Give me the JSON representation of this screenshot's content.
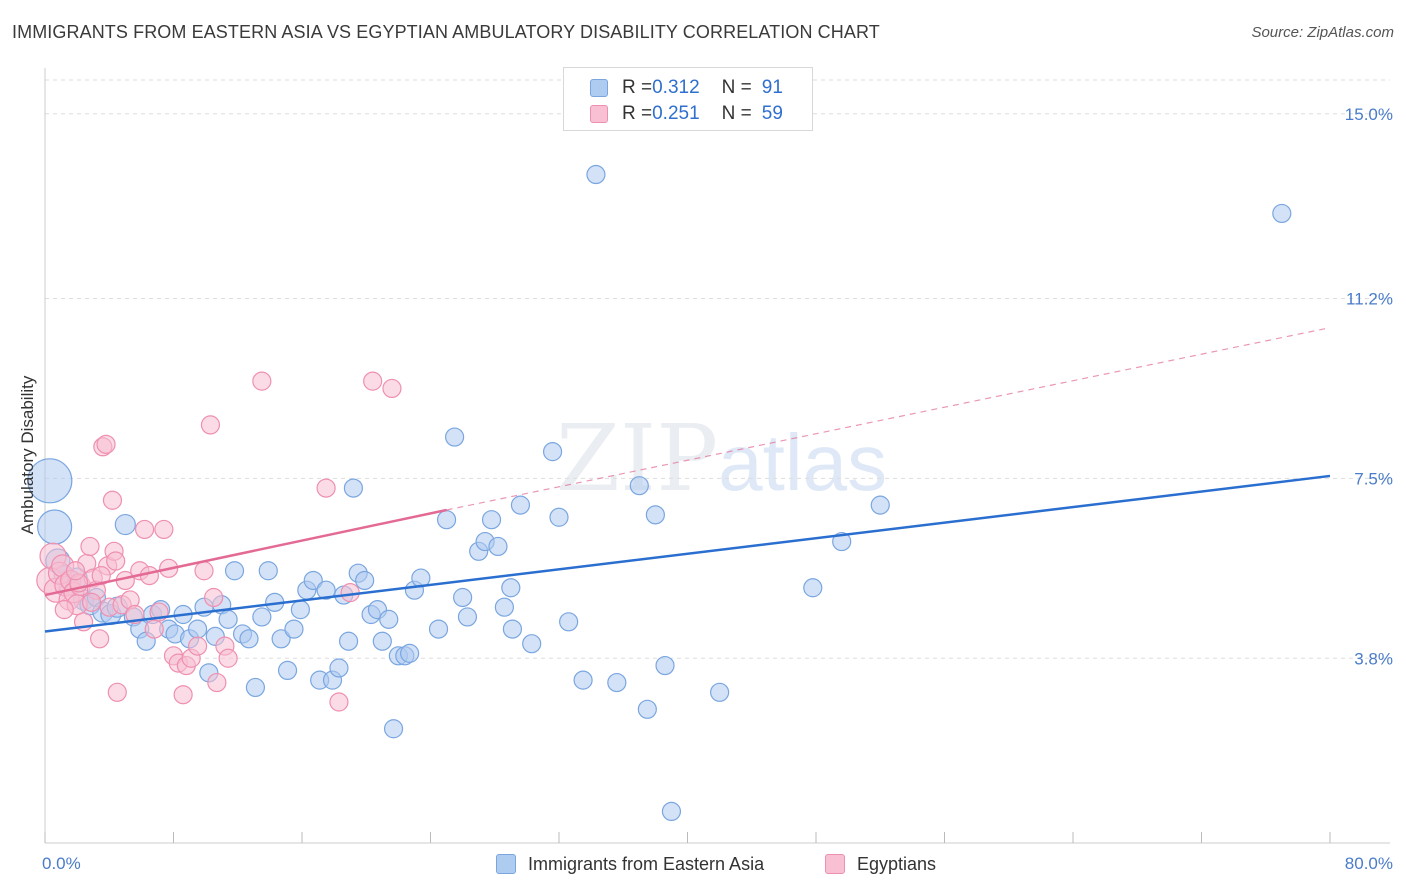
{
  "header": {
    "title": "IMMIGRANTS FROM EASTERN ASIA VS EGYPTIAN AMBULATORY DISABILITY CORRELATION CHART",
    "source": "Source: ZipAtlas.com"
  },
  "watermark": {
    "zip": "ZIP",
    "atlas": "atlas"
  },
  "legend": {
    "rows": [
      {
        "r_label": "R = ",
        "r_value": "0.312",
        "n_label": "N = ",
        "n_value": "91"
      },
      {
        "r_label": "R = ",
        "r_value": "0.251",
        "n_label": "N = ",
        "n_value": "59"
      }
    ]
  },
  "bottom_legend": [
    "Immigrants from Eastern Asia",
    "Egyptians"
  ],
  "colors": {
    "blue_fill": "#aecbf0",
    "blue_stroke": "#7aa6e0",
    "blue_line": "#2a6fd0",
    "pink_fill": "#f8c0d2",
    "pink_stroke": "#ef8fb0",
    "pink_line": "#e36a95",
    "grid": "#dddddd",
    "tick_text": "#4a7cc9"
  },
  "chart_data": {
    "type": "scatter",
    "title": "IMMIGRANTS FROM EASTERN ASIA VS EGYPTIAN AMBULATORY DISABILITY CORRELATION CHART",
    "xlabel": "",
    "ylabel": "Ambulatory Disability",
    "xlim": [
      0,
      80
    ],
    "ylim": [
      0,
      15.9
    ],
    "x_tick_labels": [
      "0.0%",
      "80.0%"
    ],
    "y_ticks": [
      3.8,
      7.5,
      11.2,
      15.0
    ],
    "y_tick_labels": [
      "3.8%",
      "7.5%",
      "11.2%",
      "15.0%"
    ],
    "grid": true,
    "legend_position": "top-center",
    "series": [
      {
        "name": "Immigrants from Eastern Asia",
        "r": 0.312,
        "n": 91,
        "trend": {
          "x": [
            0,
            80
          ],
          "y": [
            4.35,
            7.55
          ],
          "dashed_extension": false
        },
        "points": [
          [
            0.3,
            7.45,
            22
          ],
          [
            0.6,
            6.5,
            17
          ],
          [
            0.8,
            5.8,
            12
          ],
          [
            1.2,
            5.5,
            10
          ],
          [
            1.5,
            5.3,
            10
          ],
          [
            2.0,
            5.45,
            10
          ],
          [
            2.4,
            5.0,
            10
          ],
          [
            2.8,
            4.9,
            10
          ],
          [
            3.2,
            5.05,
            9
          ],
          [
            3.6,
            4.75,
            10
          ],
          [
            4.1,
            4.7,
            10
          ],
          [
            4.5,
            4.85,
            10
          ],
          [
            5.0,
            6.55,
            10
          ],
          [
            5.5,
            4.65,
            9
          ],
          [
            5.9,
            4.4,
            9
          ],
          [
            6.3,
            4.15,
            9
          ],
          [
            6.7,
            4.7,
            9
          ],
          [
            7.2,
            4.8,
            9
          ],
          [
            7.7,
            4.4,
            9
          ],
          [
            8.1,
            4.3,
            9
          ],
          [
            8.6,
            4.7,
            9
          ],
          [
            9.0,
            4.2,
            9
          ],
          [
            9.5,
            4.4,
            9
          ],
          [
            9.9,
            4.85,
            9
          ],
          [
            10.2,
            3.5,
            9
          ],
          [
            10.6,
            4.25,
            9
          ],
          [
            11.0,
            4.9,
            9
          ],
          [
            11.4,
            4.6,
            9
          ],
          [
            11.8,
            5.6,
            9
          ],
          [
            12.3,
            4.3,
            9
          ],
          [
            12.7,
            4.2,
            9
          ],
          [
            13.1,
            3.2,
            9
          ],
          [
            13.5,
            4.65,
            9
          ],
          [
            13.9,
            5.6,
            9
          ],
          [
            14.3,
            4.95,
            9
          ],
          [
            14.7,
            4.2,
            9
          ],
          [
            15.1,
            3.55,
            9
          ],
          [
            15.5,
            4.4,
            9
          ],
          [
            15.9,
            4.8,
            9
          ],
          [
            16.3,
            5.2,
            9
          ],
          [
            16.7,
            5.4,
            9
          ],
          [
            17.1,
            3.35,
            9
          ],
          [
            17.5,
            5.2,
            9
          ],
          [
            17.9,
            3.35,
            9
          ],
          [
            18.3,
            3.6,
            9
          ],
          [
            18.6,
            5.1,
            9
          ],
          [
            18.9,
            4.15,
            9
          ],
          [
            19.2,
            7.3,
            9
          ],
          [
            19.5,
            5.55,
            9
          ],
          [
            19.9,
            5.4,
            9
          ],
          [
            20.3,
            4.7,
            9
          ],
          [
            20.7,
            4.8,
            9
          ],
          [
            21.0,
            4.15,
            9
          ],
          [
            21.4,
            4.6,
            9
          ],
          [
            21.7,
            2.35,
            9
          ],
          [
            22.0,
            3.85,
            9
          ],
          [
            22.4,
            3.85,
            9
          ],
          [
            22.7,
            3.9,
            9
          ],
          [
            23.0,
            5.2,
            9
          ],
          [
            23.4,
            5.45,
            9
          ],
          [
            24.5,
            4.4,
            9
          ],
          [
            25.0,
            6.65,
            9
          ],
          [
            25.5,
            8.35,
            9
          ],
          [
            26.0,
            5.05,
            9
          ],
          [
            26.3,
            4.65,
            9
          ],
          [
            27.0,
            6.0,
            9
          ],
          [
            27.4,
            6.2,
            9
          ],
          [
            27.8,
            6.65,
            9
          ],
          [
            28.2,
            6.1,
            9
          ],
          [
            28.6,
            4.85,
            9
          ],
          [
            29.0,
            5.25,
            9
          ],
          [
            29.1,
            4.4,
            9
          ],
          [
            29.6,
            6.95,
            9
          ],
          [
            30.3,
            4.1,
            9
          ],
          [
            31.6,
            8.05,
            9
          ],
          [
            32.0,
            6.7,
            9
          ],
          [
            32.6,
            4.55,
            9
          ],
          [
            33.5,
            3.35,
            9
          ],
          [
            34.3,
            13.75,
            9
          ],
          [
            35.6,
            3.3,
            9
          ],
          [
            37.0,
            7.35,
            9
          ],
          [
            37.5,
            2.75,
            9
          ],
          [
            38.0,
            6.75,
            9
          ],
          [
            38.6,
            3.65,
            9
          ],
          [
            39.0,
            0.65,
            9
          ],
          [
            42.0,
            3.1,
            9
          ],
          [
            47.8,
            5.25,
            9
          ],
          [
            49.6,
            6.2,
            9
          ],
          [
            52.0,
            6.95,
            9
          ],
          [
            77.0,
            12.95,
            9
          ]
        ]
      },
      {
        "name": "Egyptians",
        "r": 0.251,
        "n": 59,
        "trend": {
          "x": [
            0,
            25
          ],
          "y": [
            5.1,
            6.85
          ],
          "dashed_extension": {
            "x": [
              25,
              80
            ],
            "y": [
              6.85,
              10.6
            ]
          }
        },
        "points": [
          [
            0.3,
            5.4,
            13
          ],
          [
            0.5,
            5.9,
            13
          ],
          [
            0.7,
            5.2,
            12
          ],
          [
            0.9,
            5.55,
            11
          ],
          [
            1.1,
            5.7,
            11
          ],
          [
            1.3,
            5.3,
            11
          ],
          [
            1.5,
            5.0,
            10
          ],
          [
            1.6,
            5.4,
            10
          ],
          [
            1.8,
            5.15,
            10
          ],
          [
            2.0,
            4.9,
            10
          ],
          [
            2.2,
            5.3,
            10
          ],
          [
            2.4,
            4.55,
            9
          ],
          [
            2.6,
            5.75,
            9
          ],
          [
            2.8,
            6.1,
            9
          ],
          [
            3.0,
            5.45,
            9
          ],
          [
            3.2,
            5.2,
            9
          ],
          [
            3.4,
            4.2,
            9
          ],
          [
            3.6,
            8.15,
            9
          ],
          [
            3.8,
            8.2,
            9
          ],
          [
            3.9,
            5.7,
            9
          ],
          [
            4.0,
            4.85,
            9
          ],
          [
            4.2,
            7.05,
            9
          ],
          [
            4.3,
            6.0,
            9
          ],
          [
            4.4,
            5.8,
            9
          ],
          [
            4.5,
            3.1,
            9
          ],
          [
            4.8,
            4.9,
            9
          ],
          [
            5.0,
            5.4,
            9
          ],
          [
            5.3,
            5.0,
            9
          ],
          [
            5.6,
            4.7,
            9
          ],
          [
            5.9,
            5.6,
            9
          ],
          [
            6.2,
            6.45,
            9
          ],
          [
            6.5,
            5.5,
            9
          ],
          [
            6.8,
            4.4,
            9
          ],
          [
            7.1,
            4.75,
            9
          ],
          [
            7.4,
            6.45,
            9
          ],
          [
            7.7,
            5.65,
            9
          ],
          [
            8.0,
            3.85,
            9
          ],
          [
            8.3,
            3.7,
            9
          ],
          [
            8.6,
            3.05,
            9
          ],
          [
            8.8,
            3.65,
            9
          ],
          [
            9.1,
            3.8,
            9
          ],
          [
            9.5,
            4.05,
            9
          ],
          [
            9.9,
            5.6,
            9
          ],
          [
            10.3,
            8.6,
            9
          ],
          [
            10.5,
            5.05,
            9
          ],
          [
            10.7,
            3.3,
            9
          ],
          [
            11.2,
            4.05,
            9
          ],
          [
            11.4,
            3.8,
            9
          ],
          [
            13.5,
            9.5,
            9
          ],
          [
            17.5,
            7.3,
            9
          ],
          [
            18.3,
            2.9,
            9
          ],
          [
            19.0,
            5.15,
            9
          ],
          [
            20.4,
            9.5,
            9
          ],
          [
            21.6,
            9.35,
            9
          ],
          [
            2.1,
            5.35,
            9
          ],
          [
            1.2,
            4.8,
            9
          ],
          [
            3.5,
            5.5,
            9
          ],
          [
            2.9,
            4.95,
            9
          ],
          [
            1.9,
            5.6,
            9
          ]
        ]
      }
    ]
  }
}
